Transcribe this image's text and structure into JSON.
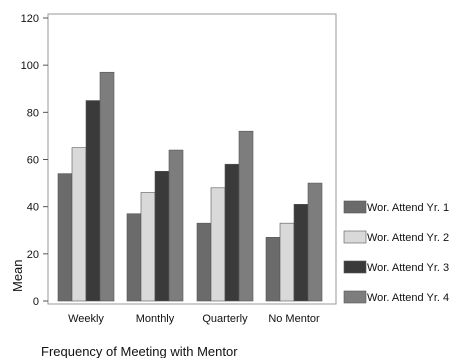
{
  "chart_data": {
    "type": "bar",
    "title": "",
    "xlabel": "Frequency of Meeting with Mentor",
    "ylabel": "Mean",
    "ylim": [
      0,
      120
    ],
    "yticks": [
      0,
      20,
      40,
      60,
      80,
      100,
      120
    ],
    "grid": false,
    "legend_position": "right",
    "categories": [
      "Weekly",
      "Monthly",
      "Quarterly",
      "No Mentor"
    ],
    "series": [
      {
        "name": "Wor. Attend Yr. 1",
        "color": "#6b6b6b",
        "values": [
          54,
          37,
          33,
          27
        ]
      },
      {
        "name": "Wor. Attend Yr. 2",
        "color": "#d9d9d9",
        "values": [
          65,
          46,
          48,
          33
        ]
      },
      {
        "name": "Wor. Attend Yr. 3",
        "color": "#3a3a3a",
        "values": [
          85,
          55,
          58,
          41
        ]
      },
      {
        "name": "Wor. Attend Yr. 4",
        "color": "#7d7d7d",
        "values": [
          97,
          64,
          72,
          50
        ]
      }
    ]
  }
}
